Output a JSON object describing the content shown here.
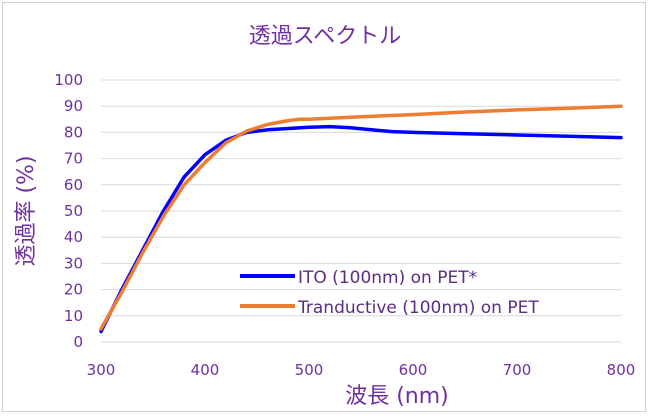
{
  "chart_data": {
    "type": "line",
    "title": "透過スペクトル",
    "xlabel": "波長 (nm)",
    "ylabel": "透過率 (%)",
    "xlim": [
      300,
      800
    ],
    "ylim": [
      0,
      100
    ],
    "x_ticks": [
      300,
      400,
      500,
      600,
      700,
      800
    ],
    "y_ticks": [
      0,
      10,
      20,
      30,
      40,
      50,
      60,
      70,
      80,
      90,
      100
    ],
    "grid": true,
    "legend_position": "bottom-center",
    "colors": {
      "title": "#7030A0",
      "axis_labels": "#7030A0",
      "ticks": "#7030A0",
      "grid": "#d9d9d9",
      "legend_text": "#5a2d82"
    },
    "series": [
      {
        "name": "ITO (100nm) on PET*",
        "color": "#0000FF",
        "points": [
          [
            300,
            4
          ],
          [
            320,
            20
          ],
          [
            340,
            35
          ],
          [
            360,
            50
          ],
          [
            380,
            63
          ],
          [
            400,
            71.5
          ],
          [
            420,
            77
          ],
          [
            440,
            80
          ],
          [
            460,
            81
          ],
          [
            480,
            81.5
          ],
          [
            500,
            82
          ],
          [
            520,
            82.2
          ],
          [
            540,
            81.8
          ],
          [
            560,
            81
          ],
          [
            580,
            80.3
          ],
          [
            600,
            80
          ],
          [
            650,
            79.5
          ],
          [
            700,
            79
          ],
          [
            750,
            78.5
          ],
          [
            800,
            78
          ]
        ]
      },
      {
        "name": "Tranductive (100nm) on PET",
        "color": "#ED7D31",
        "points": [
          [
            300,
            5
          ],
          [
            320,
            19
          ],
          [
            340,
            34
          ],
          [
            360,
            48
          ],
          [
            380,
            60
          ],
          [
            400,
            68.5
          ],
          [
            420,
            76
          ],
          [
            440,
            80.5
          ],
          [
            460,
            83
          ],
          [
            480,
            84.5
          ],
          [
            490,
            85
          ],
          [
            500,
            85
          ],
          [
            550,
            86
          ],
          [
            600,
            86.8
          ],
          [
            650,
            87.8
          ],
          [
            700,
            88.6
          ],
          [
            750,
            89.2
          ],
          [
            800,
            90
          ]
        ]
      }
    ]
  }
}
